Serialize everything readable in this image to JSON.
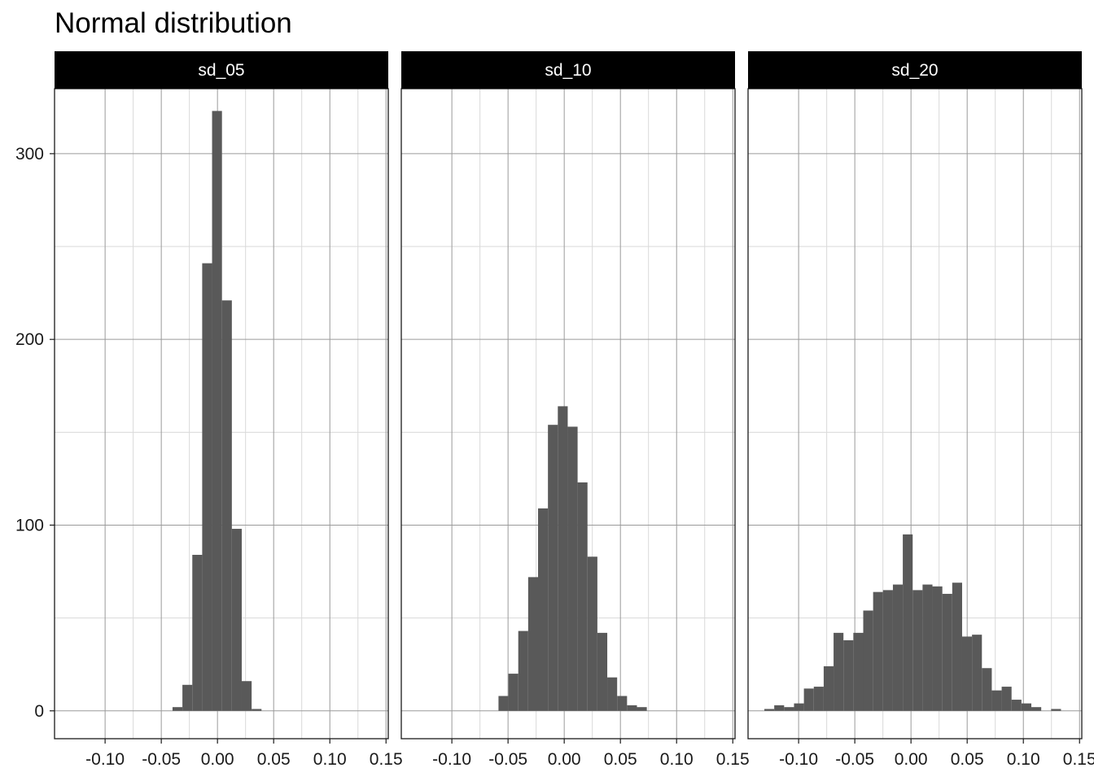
{
  "chart_data": {
    "type": "bar",
    "title": "Normal distribution",
    "xlabel": "",
    "ylabel": "",
    "xlim": [
      -0.145,
      0.152
    ],
    "ylim": [
      -15,
      335
    ],
    "x_ticks": [
      -0.1,
      -0.05,
      0.0,
      0.05,
      0.1,
      0.15
    ],
    "x_tick_labels": [
      "-0.10",
      "-0.05",
      "0.00",
      "0.05",
      "0.10",
      "0.15"
    ],
    "y_ticks": [
      0,
      100,
      200,
      300
    ],
    "y_tick_labels": [
      "0",
      "100",
      "200",
      "300"
    ],
    "grid": true,
    "legend": "none",
    "colors": {
      "bar": "#595959",
      "strip_background": "#000000",
      "strip_text": "#ffffff",
      "grid_major": "#9a9a9a",
      "grid_minor": "#d9d9d9",
      "panel_border": "#1a1a1a"
    },
    "facets": [
      {
        "name": "sd_05",
        "bin_width": 0.0088,
        "bin_start": -0.04,
        "counts": [
          2,
          14,
          84,
          241,
          323,
          221,
          98,
          16,
          1
        ]
      },
      {
        "name": "sd_10",
        "bin_width": 0.0088,
        "bin_start": -0.0585,
        "counts": [
          8,
          20,
          43,
          72,
          109,
          154,
          164,
          153,
          123,
          83,
          42,
          18,
          8,
          3,
          2
        ]
      },
      {
        "name": "sd_20",
        "bin_width": 0.0088,
        "bin_start": -0.1305,
        "counts": [
          1,
          3,
          2,
          4,
          12,
          13,
          24,
          42,
          38,
          42,
          54,
          64,
          65,
          68,
          95,
          65,
          68,
          67,
          63,
          69,
          40,
          41,
          23,
          11,
          13,
          6,
          4,
          2,
          0,
          1
        ]
      }
    ]
  }
}
